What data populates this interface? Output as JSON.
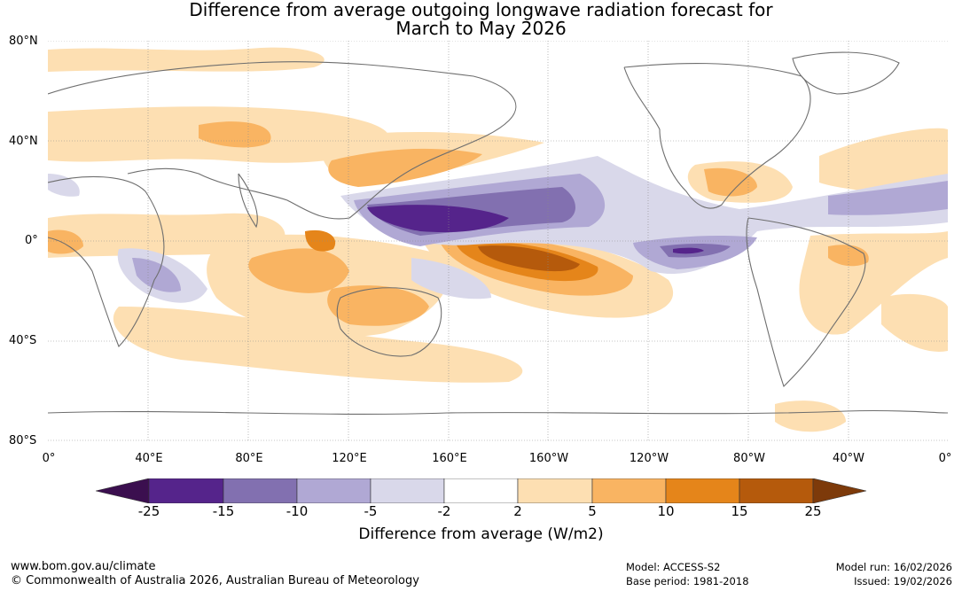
{
  "title": {
    "line1": "Difference from average outgoing longwave radiation forecast for",
    "line2": "March to May 2026"
  },
  "latitude_labels": [
    "80°N",
    "40°N",
    "0°",
    "40°S",
    "80°S"
  ],
  "longitude_labels": [
    "0°",
    "40°E",
    "80°E",
    "120°E",
    "160°E",
    "160°W",
    "120°W",
    "80°W",
    "40°W",
    "0°"
  ],
  "colorbar": {
    "ticks": [
      "-25",
      "-15",
      "-10",
      "-5",
      "-2",
      "2",
      "5",
      "10",
      "15",
      "25"
    ],
    "colors": [
      "#3b0f4f",
      "#55248b",
      "#8270b0",
      "#b0a8d4",
      "#d9d8ea",
      "#ffffff",
      "#fddfb2",
      "#f9b462",
      "#e5851a",
      "#b55a0c",
      "#7d3a0a"
    ],
    "label": "Difference from average (W/m2)"
  },
  "footer": {
    "website": "www.bom.gov.au/climate",
    "copyright": "© Commonwealth of Australia 2026, Australian Bureau of Meteorology",
    "model": "Model: ACCESS-S2",
    "base_period": "Base period: 1981-2018",
    "model_run": "Model run: 16/02/2026",
    "issued": "Issued: 19/02/2026"
  },
  "map_layers": {
    "land_color": "#6e6e6e",
    "grid_color": "#8a8a8a"
  }
}
